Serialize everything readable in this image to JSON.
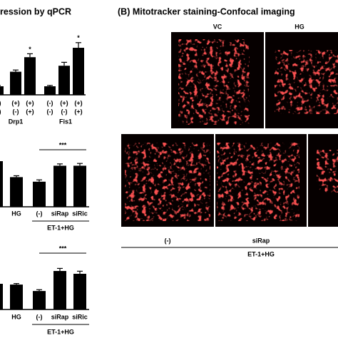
{
  "panel_a": {
    "title": "ression by qPCR"
  },
  "chart_data": [
    {
      "type": "bar",
      "color": "#000000",
      "ylim": [
        0,
        6
      ],
      "values": [
        1,
        2.7,
        4.4,
        1,
        3.4,
        5.5
      ],
      "errors": [
        0.1,
        0.2,
        0.4,
        0.1,
        0.4,
        0.6
      ],
      "markers": [
        null,
        null,
        "*",
        null,
        null,
        "*"
      ],
      "condition_rows": [
        [
          "(-)",
          "(+)",
          "(+)",
          "(-)",
          "(+)",
          "(+)"
        ],
        [
          "(-)",
          "(-)",
          "(+)",
          "(-)",
          "(-)",
          "(+)"
        ]
      ],
      "groups": [
        "Drp1",
        "Fis1"
      ]
    },
    {
      "type": "bar",
      "color": "#000000",
      "ylim": [
        0,
        1.2
      ],
      "categories": [
        null,
        "HG",
        "(-)",
        "siRap",
        "siRic"
      ],
      "values": [
        1.0,
        0.65,
        0.55,
        0.9,
        0.9
      ],
      "errors": [
        0.03,
        0.03,
        0.04,
        0.04,
        0.05
      ],
      "bracket": "***",
      "group": "ET-1+HG"
    },
    {
      "type": "bar",
      "color": "#000000",
      "ylim": [
        0,
        1.8
      ],
      "categories": [
        null,
        "HG",
        "(-)",
        "siRap",
        "siRic"
      ],
      "values": [
        1.0,
        0.97,
        0.72,
        1.5,
        1.39
      ],
      "errors": [
        0.04,
        0.04,
        0.05,
        0.1,
        0.1
      ],
      "bracket": "***",
      "group": "ET-1+HG"
    }
  ],
  "panel_b": {
    "title": "(B) Mitotracker staining-Confocal imaging",
    "top_labels": [
      "VC",
      "HG"
    ],
    "bottom_labels": [
      "(-)",
      "siRap"
    ],
    "group": "ET-1+HG"
  }
}
